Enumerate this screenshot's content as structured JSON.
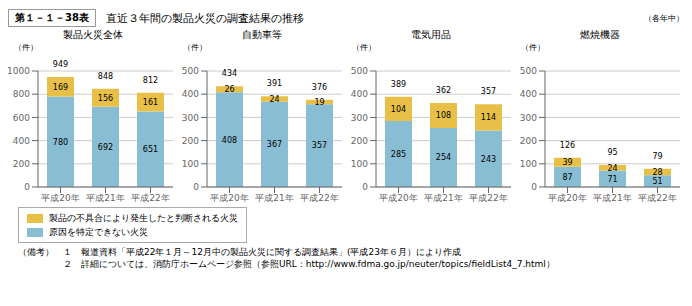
{
  "title": "直近３年間の製品火災の調査結果の推移",
  "subtitle": "（各年中）",
  "annotations": [
    "第１－１－38表",
    "（備考）　１　報道資料「平成22年１月～12月中の製品火災に関する調査結果」(平成23年６月）により作成",
    "　　　　　２　詳細については、消防庁ホームページ参照（参照URL：http://www.fdma.go.jp/neuter/topics/fieldList4_7.html）"
  ],
  "chart_data": [
    {
      "type": "bar",
      "title": "製品火災全体",
      "ylabel": "（件）",
      "categories": [
        "平成20年",
        "平成21年",
        "平成22年"
      ],
      "series": [
        {
          "name": "原因を特定できない火災",
          "color": "#88BDD4",
          "values": [
            780,
            692,
            651
          ]
        },
        {
          "name": "製品の不具合により発生したと判断される火災",
          "color": "#E8C048",
          "values": [
            169,
            156,
            161
          ]
        }
      ],
      "totals": [
        949,
        848,
        812
      ],
      "stacked": true,
      "data_labels": true,
      "grid": true,
      "ylim": [
        0,
        1000
      ],
      "yticks": [
        0,
        200,
        400,
        600,
        800,
        1000
      ]
    },
    {
      "type": "bar",
      "title": "自動車等",
      "ylabel": "（件）",
      "categories": [
        "平成20年",
        "平成21年",
        "平成22年"
      ],
      "series": [
        {
          "name": "原因を特定できない火災",
          "color": "#88BDD4",
          "values": [
            408,
            367,
            357
          ]
        },
        {
          "name": "製品の不具合により発生したと判断される火災",
          "color": "#E8C048",
          "values": [
            26,
            24,
            19
          ]
        }
      ],
      "totals": [
        434,
        391,
        376
      ],
      "stacked": true,
      "data_labels": true,
      "grid": true,
      "ylim": [
        0,
        500
      ],
      "yticks": [
        0,
        100,
        200,
        300,
        400,
        500
      ]
    },
    {
      "type": "bar",
      "title": "電気用品",
      "ylabel": "（件）",
      "categories": [
        "平成20年",
        "平成21年",
        "平成22年"
      ],
      "series": [
        {
          "name": "原因を特定できない火災",
          "color": "#88BDD4",
          "values": [
            285,
            254,
            243
          ]
        },
        {
          "name": "製品の不具合により発生したと判断される火災",
          "color": "#E8C048",
          "values": [
            104,
            108,
            114
          ]
        }
      ],
      "totals": [
        389,
        362,
        357
      ],
      "stacked": true,
      "data_labels": true,
      "grid": true,
      "ylim": [
        0,
        500
      ],
      "yticks": [
        0,
        100,
        200,
        300,
        400,
        500
      ]
    },
    {
      "type": "bar",
      "title": "燃焼機器",
      "ylabel": "（件）",
      "categories": [
        "平成20年",
        "平成21年",
        "平成22年"
      ],
      "series": [
        {
          "name": "原因を特定できない火災",
          "color": "#88BDD4",
          "values": [
            87,
            71,
            51
          ]
        },
        {
          "name": "製品の不具合により発生したと判断される火災",
          "color": "#E8C048",
          "values": [
            39,
            24,
            28
          ]
        }
      ],
      "totals": [
        126,
        95,
        79
      ],
      "stacked": true,
      "data_labels": true,
      "grid": true,
      "ylim": [
        0,
        500
      ],
      "yticks": [
        0,
        100,
        200,
        300,
        400,
        500
      ]
    }
  ]
}
